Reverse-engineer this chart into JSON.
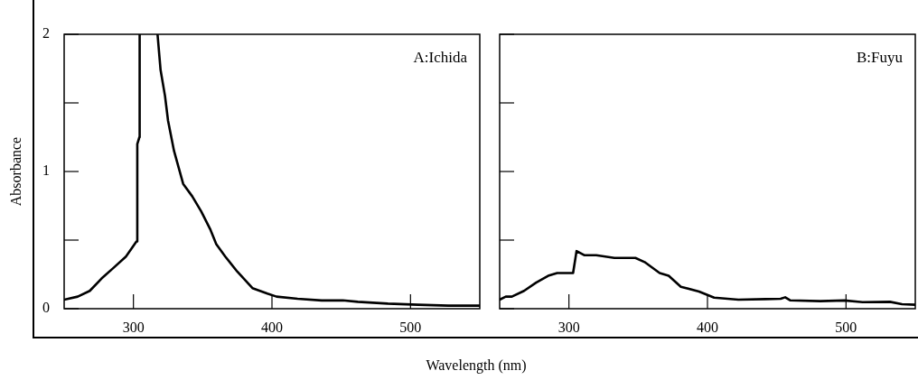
{
  "chart_data": [
    {
      "type": "line",
      "ylabel": "Absorbance",
      "annotations": [
        "A:Ichida"
      ],
      "xlim": [
        250,
        550
      ],
      "ylim": [
        0,
        2
      ],
      "xticks": [
        300,
        400,
        500
      ],
      "yticks": [
        0,
        {
          "value": 0.5,
          "label": null
        },
        1,
        {
          "value": 1.5,
          "label": null
        },
        2
      ],
      "series": [
        {
          "color": "#000000",
          "x": [
            250,
            259.8,
            268.5,
            277,
            285.9,
            294.6,
            302.2,
            302.8,
            304.3,
            304.5,
            310,
            317.4,
            319.6,
            322.8,
            325,
            329.3,
            335.9,
            342.4,
            348.9,
            355.4,
            359.8,
            366.3,
            375,
            385.9,
            396.7,
            403.3,
            418.5,
            435.9,
            451.1,
            462,
            483.7,
            505.4,
            527.2,
            550
          ],
          "values": [
            0.066,
            0.088,
            0.13,
            0.22,
            0.3,
            0.38,
            0.49,
            1.2,
            1.25,
            2,
            null,
            2,
            1.74,
            1.55,
            1.37,
            1.15,
            0.91,
            0.82,
            0.71,
            0.58,
            0.47,
            0.38,
            0.27,
            0.15,
            0.11,
            0.088,
            0.072,
            0.06,
            0.061,
            0.05,
            0.037,
            0.029,
            0.022,
            0.022
          ]
        }
      ]
    },
    {
      "type": "line",
      "xlabel": "Wavelength (nm)",
      "annotations": [
        "B:Fuyu"
      ],
      "xlim": [
        250,
        550
      ],
      "ylim": [
        0,
        2
      ],
      "xticks": [
        300,
        400,
        500
      ],
      "yticks": [
        0,
        0.5,
        1,
        1.5,
        2
      ],
      "tick_labels": "x",
      "series": [
        {
          "color": "#000000",
          "x": [
            250,
            254.4,
            258.8,
            267.6,
            276.3,
            285,
            291.5,
            303,
            305.5,
            311,
            319.7,
            332.8,
            348,
            354.6,
            365.5,
            372,
            380.8,
            393.9,
            404.8,
            422.3,
            441.9,
            452.8,
            456.1,
            459.6,
            481.4,
            498.9,
            512,
            531.7,
            540.4,
            550
          ],
          "values": [
            0.066,
            0.088,
            0.088,
            0.13,
            0.19,
            0.24,
            0.26,
            0.26,
            0.42,
            0.39,
            0.39,
            0.37,
            0.37,
            0.34,
            0.26,
            0.24,
            0.16,
            0.125,
            0.081,
            0.066,
            0.07,
            0.072,
            0.083,
            0.061,
            0.055,
            0.06,
            0.048,
            0.05,
            0.033,
            0.029
          ]
        }
      ]
    }
  ]
}
